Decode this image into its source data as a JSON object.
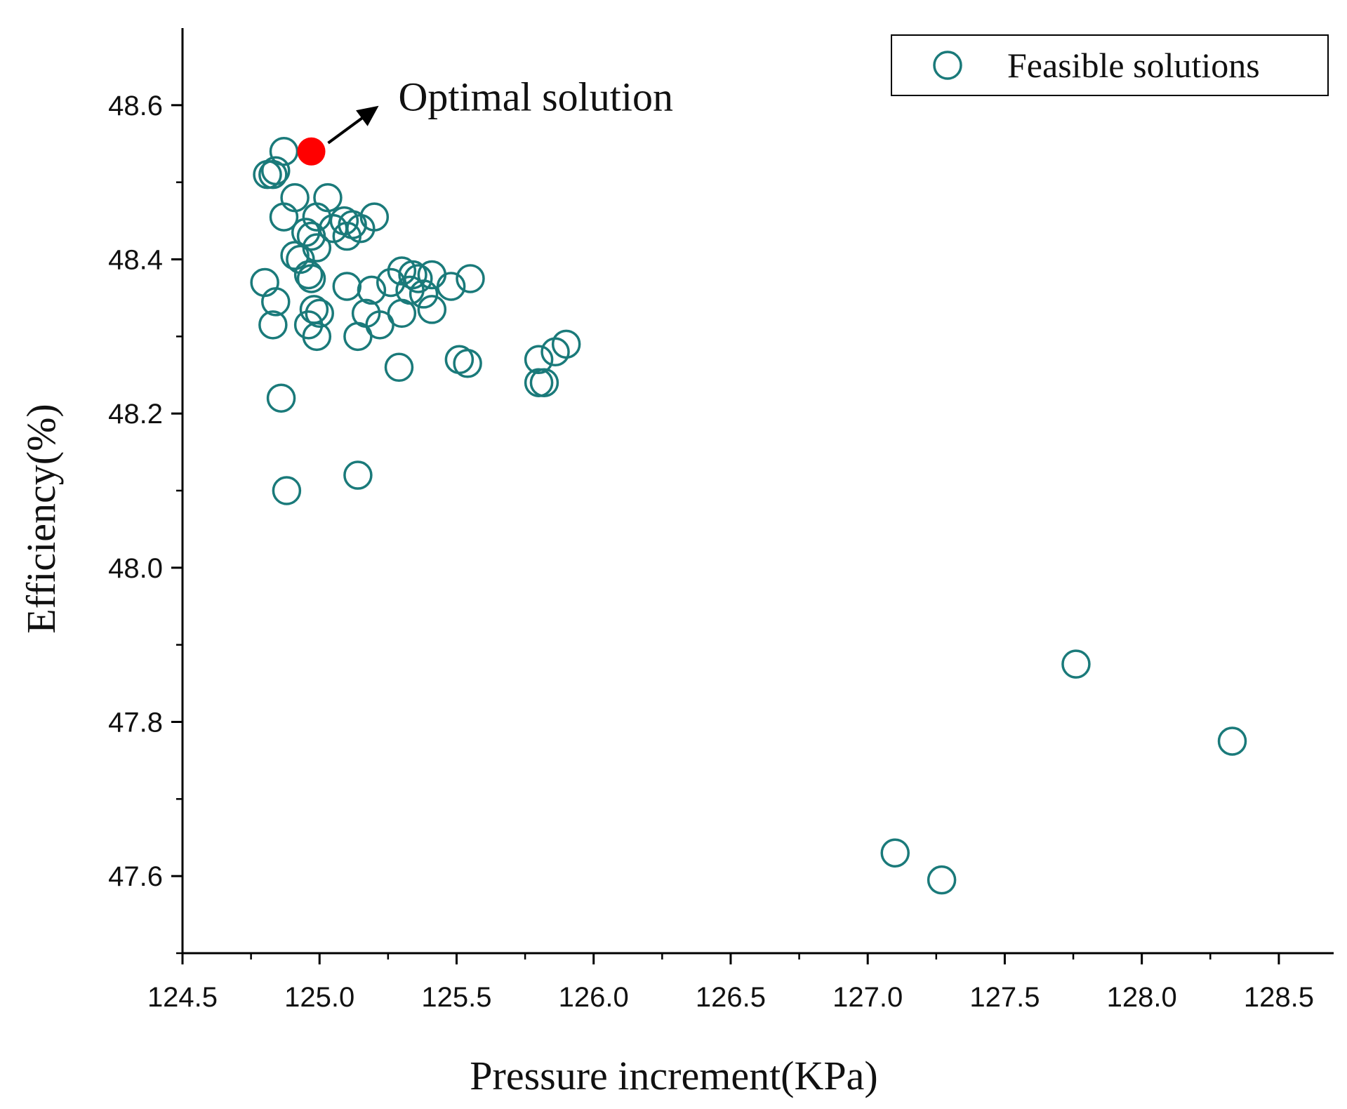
{
  "chart_data": {
    "type": "scatter",
    "title": "",
    "xlabel": "Pressure increment(KPa)",
    "ylabel": "Efficiency(%)",
    "xlim": [
      124.5,
      128.7
    ],
    "ylim": [
      47.5,
      48.7
    ],
    "xticks": [
      "124.5",
      "125.0",
      "125.5",
      "126.0",
      "126.5",
      "127.0",
      "127.5",
      "128.0",
      "128.5"
    ],
    "yticks": [
      "47.6",
      "47.8",
      "48.0",
      "48.2",
      "48.4",
      "48.6"
    ],
    "legend": {
      "location": "top-right",
      "entries": [
        "Feasible solutions"
      ]
    },
    "colors": {
      "feasible": "#1a7a7a",
      "optimal": "#ff0000",
      "axis": "#000000"
    },
    "annotation": {
      "text": "Optimal solution",
      "x": 124.97,
      "y": 48.54
    },
    "series": [
      {
        "name": "Feasible solutions",
        "marker": "open-circle",
        "points": [
          [
            124.87,
            48.54
          ],
          [
            124.81,
            48.51
          ],
          [
            124.84,
            48.515
          ],
          [
            124.83,
            48.51
          ],
          [
            124.91,
            48.48
          ],
          [
            125.03,
            48.48
          ],
          [
            124.87,
            48.455
          ],
          [
            124.99,
            48.455
          ],
          [
            125.09,
            48.45
          ],
          [
            125.2,
            48.455
          ],
          [
            125.05,
            48.44
          ],
          [
            125.12,
            48.445
          ],
          [
            125.15,
            48.44
          ],
          [
            125.1,
            48.43
          ],
          [
            124.95,
            48.435
          ],
          [
            124.97,
            48.43
          ],
          [
            124.99,
            48.415
          ],
          [
            124.91,
            48.405
          ],
          [
            124.93,
            48.4
          ],
          [
            124.96,
            48.38
          ],
          [
            124.97,
            48.375
          ],
          [
            124.8,
            48.37
          ],
          [
            125.1,
            48.365
          ],
          [
            125.19,
            48.36
          ],
          [
            125.26,
            48.37
          ],
          [
            125.3,
            48.385
          ],
          [
            125.34,
            48.38
          ],
          [
            125.36,
            48.375
          ],
          [
            125.41,
            48.38
          ],
          [
            125.48,
            48.365
          ],
          [
            125.55,
            48.375
          ],
          [
            125.33,
            48.36
          ],
          [
            125.38,
            48.355
          ],
          [
            124.84,
            48.345
          ],
          [
            124.98,
            48.335
          ],
          [
            125.0,
            48.33
          ],
          [
            125.17,
            48.33
          ],
          [
            125.3,
            48.33
          ],
          [
            125.41,
            48.335
          ],
          [
            124.83,
            48.315
          ],
          [
            124.96,
            48.315
          ],
          [
            125.22,
            48.315
          ],
          [
            124.99,
            48.3
          ],
          [
            125.14,
            48.3
          ],
          [
            125.9,
            48.29
          ],
          [
            125.86,
            48.28
          ],
          [
            125.51,
            48.27
          ],
          [
            125.54,
            48.265
          ],
          [
            125.8,
            48.27
          ],
          [
            125.29,
            48.26
          ],
          [
            125.82,
            48.24
          ],
          [
            125.8,
            48.24
          ],
          [
            124.86,
            48.22
          ],
          [
            125.14,
            48.12
          ],
          [
            124.88,
            48.1
          ],
          [
            127.76,
            47.875
          ],
          [
            128.33,
            47.775
          ],
          [
            127.1,
            47.63
          ],
          [
            127.27,
            47.595
          ]
        ]
      },
      {
        "name": "Optimal solution",
        "marker": "filled-circle",
        "points": [
          [
            124.97,
            48.54
          ]
        ]
      }
    ]
  }
}
